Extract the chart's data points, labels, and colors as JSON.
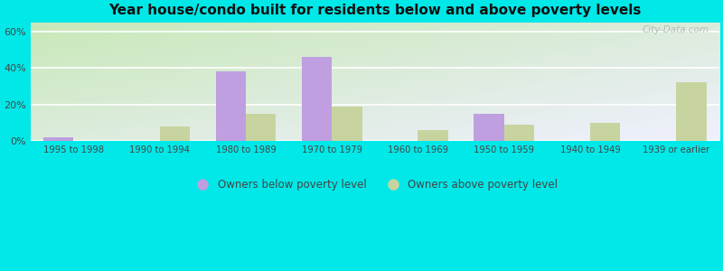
{
  "title": "Year house/condo built for residents below and above poverty levels",
  "categories": [
    "1995 to 1998",
    "1990 to 1994",
    "1980 to 1989",
    "1970 to 1979",
    "1960 to 1969",
    "1950 to 1959",
    "1940 to 1949",
    "1939 or earlier"
  ],
  "below_poverty": [
    2.0,
    0.0,
    38.0,
    46.0,
    0.0,
    15.0,
    0.0,
    0.0
  ],
  "above_poverty": [
    0.0,
    8.0,
    15.0,
    19.0,
    6.0,
    9.0,
    10.0,
    32.0
  ],
  "below_color": "#bf9fdf",
  "above_color": "#c8d4a0",
  "ylim": [
    0,
    65
  ],
  "yticks": [
    0,
    20,
    40,
    60
  ],
  "ytick_labels": [
    "0%",
    "20%",
    "40%",
    "60%"
  ],
  "bar_width": 0.35,
  "outer_bg": "#00e8e8",
  "legend_below": "Owners below poverty level",
  "legend_above": "Owners above poverty level",
  "watermark": "City-Data.com"
}
